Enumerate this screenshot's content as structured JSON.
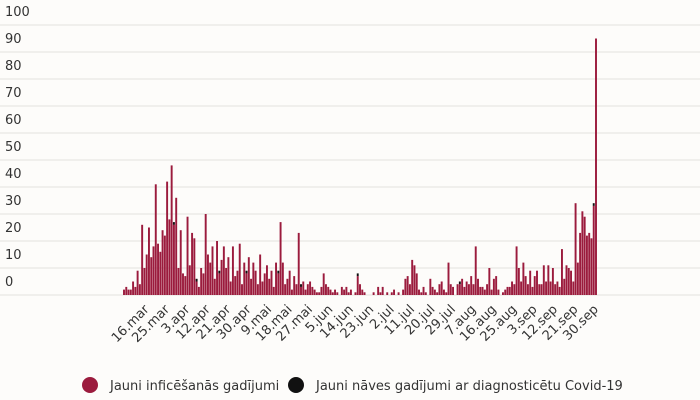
{
  "chart_data": {
    "type": "bar",
    "stacked": true,
    "categories": [
      null,
      null,
      null,
      null,
      null,
      null,
      null,
      null,
      null,
      null,
      "16.mar",
      null,
      null,
      null,
      null,
      null,
      null,
      null,
      null,
      "25.mar",
      null,
      null,
      null,
      null,
      null,
      null,
      null,
      null,
      "3.apr",
      null,
      null,
      null,
      null,
      null,
      null,
      null,
      null,
      "12.apr",
      null,
      null,
      null,
      null,
      null,
      null,
      null,
      null,
      "21.apr",
      null,
      null,
      null,
      null,
      null,
      null,
      null,
      null,
      "30.apr",
      null,
      null,
      null,
      null,
      null,
      null,
      null,
      null,
      "9.mai",
      null,
      null,
      null,
      null,
      null,
      null,
      null,
      null,
      "18.mai",
      null,
      null,
      null,
      null,
      null,
      null,
      null,
      null,
      "27.mai",
      null,
      null,
      null,
      null,
      null,
      null,
      null,
      null,
      "5.jun",
      null,
      null,
      null,
      null,
      null,
      null,
      null,
      null,
      "14.jun",
      null,
      null,
      null,
      null,
      null,
      null,
      null,
      null,
      "23.jun",
      null,
      null,
      null,
      null,
      null,
      null,
      null,
      null,
      "2.jul",
      null,
      null,
      null,
      null,
      null,
      null,
      null,
      null,
      "11.jul",
      null,
      null,
      null,
      null,
      null,
      null,
      null,
      null,
      "20.jul",
      null,
      null,
      null,
      null,
      null,
      null,
      null,
      null,
      "29.jul",
      null,
      null,
      null,
      null,
      null,
      null,
      null,
      null,
      "7.aug",
      null,
      null,
      null,
      null,
      null,
      null,
      null,
      null,
      "16.aug",
      null,
      null,
      null,
      null,
      null,
      null,
      null,
      null,
      "25.aug",
      null,
      null,
      null,
      null,
      null,
      null,
      null,
      null,
      "3.sep",
      null,
      null,
      null,
      null,
      null,
      null,
      null,
      null,
      "12.sep",
      null,
      null,
      null,
      null,
      null,
      null,
      null,
      null,
      "21.sep",
      null,
      null,
      null,
      null,
      null,
      null,
      null,
      null,
      "30.sep"
    ],
    "series": [
      {
        "name": "Jauni inficēšanās gadījumi",
        "color": "#9b1b3d",
        "values": [
          2,
          3,
          2,
          2,
          5,
          3,
          9,
          4,
          26,
          10,
          15,
          25,
          14,
          18,
          41,
          19,
          16,
          24,
          22,
          42,
          28,
          48,
          26,
          36,
          10,
          24,
          8,
          7,
          29,
          11,
          23,
          21,
          5,
          3,
          10,
          8,
          30,
          15,
          12,
          18,
          6,
          20,
          8,
          13,
          18,
          10,
          14,
          5,
          18,
          7,
          9,
          19,
          4,
          12,
          8,
          14,
          6,
          12,
          9,
          4,
          15,
          5,
          8,
          11,
          6,
          9,
          3,
          12,
          8,
          27,
          12,
          4,
          6,
          9,
          2,
          7,
          4,
          23,
          3,
          5,
          2,
          4,
          5,
          3,
          2,
          1,
          1,
          3,
          8,
          4,
          3,
          2,
          1,
          2,
          1,
          0,
          3,
          2,
          3,
          1,
          2,
          0,
          1,
          7,
          4,
          2,
          1,
          0,
          0,
          0,
          1,
          0,
          3,
          1,
          3,
          0,
          1,
          0,
          1,
          2,
          0,
          1,
          0,
          2,
          6,
          7,
          4,
          13,
          11,
          8,
          2,
          1,
          3,
          1,
          0,
          6,
          3,
          2,
          1,
          4,
          5,
          2,
          1,
          12,
          4,
          3,
          0,
          4,
          4,
          6,
          3,
          5,
          4,
          7,
          4,
          18,
          6,
          3,
          3,
          2,
          4,
          10,
          2,
          6,
          7,
          2,
          0,
          1,
          2,
          3,
          3,
          5,
          4,
          18,
          10,
          5,
          12,
          7,
          4,
          9,
          3,
          7,
          9,
          4,
          4,
          11,
          5,
          11,
          5,
          10,
          4,
          5,
          3,
          17,
          6,
          11,
          10,
          9,
          5,
          34,
          12,
          23,
          31,
          29,
          22,
          23,
          21,
          33,
          95
        ]
      },
      {
        "name": "Jauni nāves gadījumi ar diagnosticētu Covid-19",
        "color": "#111111",
        "values": [
          0,
          0,
          0,
          0,
          0,
          0,
          0,
          0,
          0,
          0,
          0,
          0,
          0,
          0,
          0,
          0,
          0,
          0,
          0,
          0,
          0,
          0,
          1,
          0,
          0,
          0,
          0,
          0,
          0,
          0,
          0,
          0,
          1,
          0,
          0,
          0,
          0,
          0,
          0,
          0,
          0,
          0,
          1,
          0,
          0,
          0,
          0,
          0,
          0,
          0,
          0,
          0,
          0,
          0,
          1,
          0,
          0,
          0,
          0,
          0,
          0,
          0,
          0,
          0,
          0,
          0,
          0,
          0,
          1,
          0,
          0,
          0,
          0,
          0,
          0,
          0,
          0,
          0,
          1,
          0,
          0,
          0,
          0,
          0,
          0,
          0,
          0,
          0,
          0,
          0,
          0,
          0,
          0,
          0,
          0,
          0,
          0,
          0,
          0,
          0,
          0,
          0,
          0,
          1,
          0,
          0,
          0,
          0,
          0,
          0,
          0,
          0,
          0,
          0,
          0,
          0,
          0,
          0,
          0,
          0,
          0,
          0,
          0,
          0,
          0,
          0,
          0,
          0,
          0,
          0,
          0,
          0,
          0,
          0,
          0,
          0,
          0,
          0,
          0,
          0,
          0,
          0,
          0,
          0,
          0,
          0,
          0,
          0,
          1,
          0,
          0,
          0,
          0,
          0,
          0,
          0,
          0,
          0,
          0,
          0,
          0,
          0,
          0,
          0,
          0,
          0,
          0,
          0,
          0,
          0,
          0,
          0,
          0,
          0,
          0,
          0,
          0,
          0,
          0,
          0,
          0,
          0,
          0,
          0,
          0,
          0,
          0,
          0,
          0,
          0,
          0,
          0,
          0,
          0,
          0,
          0,
          0,
          0,
          0,
          0,
          0,
          0,
          0,
          0,
          0,
          0,
          0,
          1,
          0
        ]
      }
    ],
    "ylim": [
      0,
      100
    ],
    "yticks": [
      0,
      10,
      20,
      30,
      40,
      50,
      60,
      70,
      80,
      90,
      100
    ],
    "grid": true
  }
}
